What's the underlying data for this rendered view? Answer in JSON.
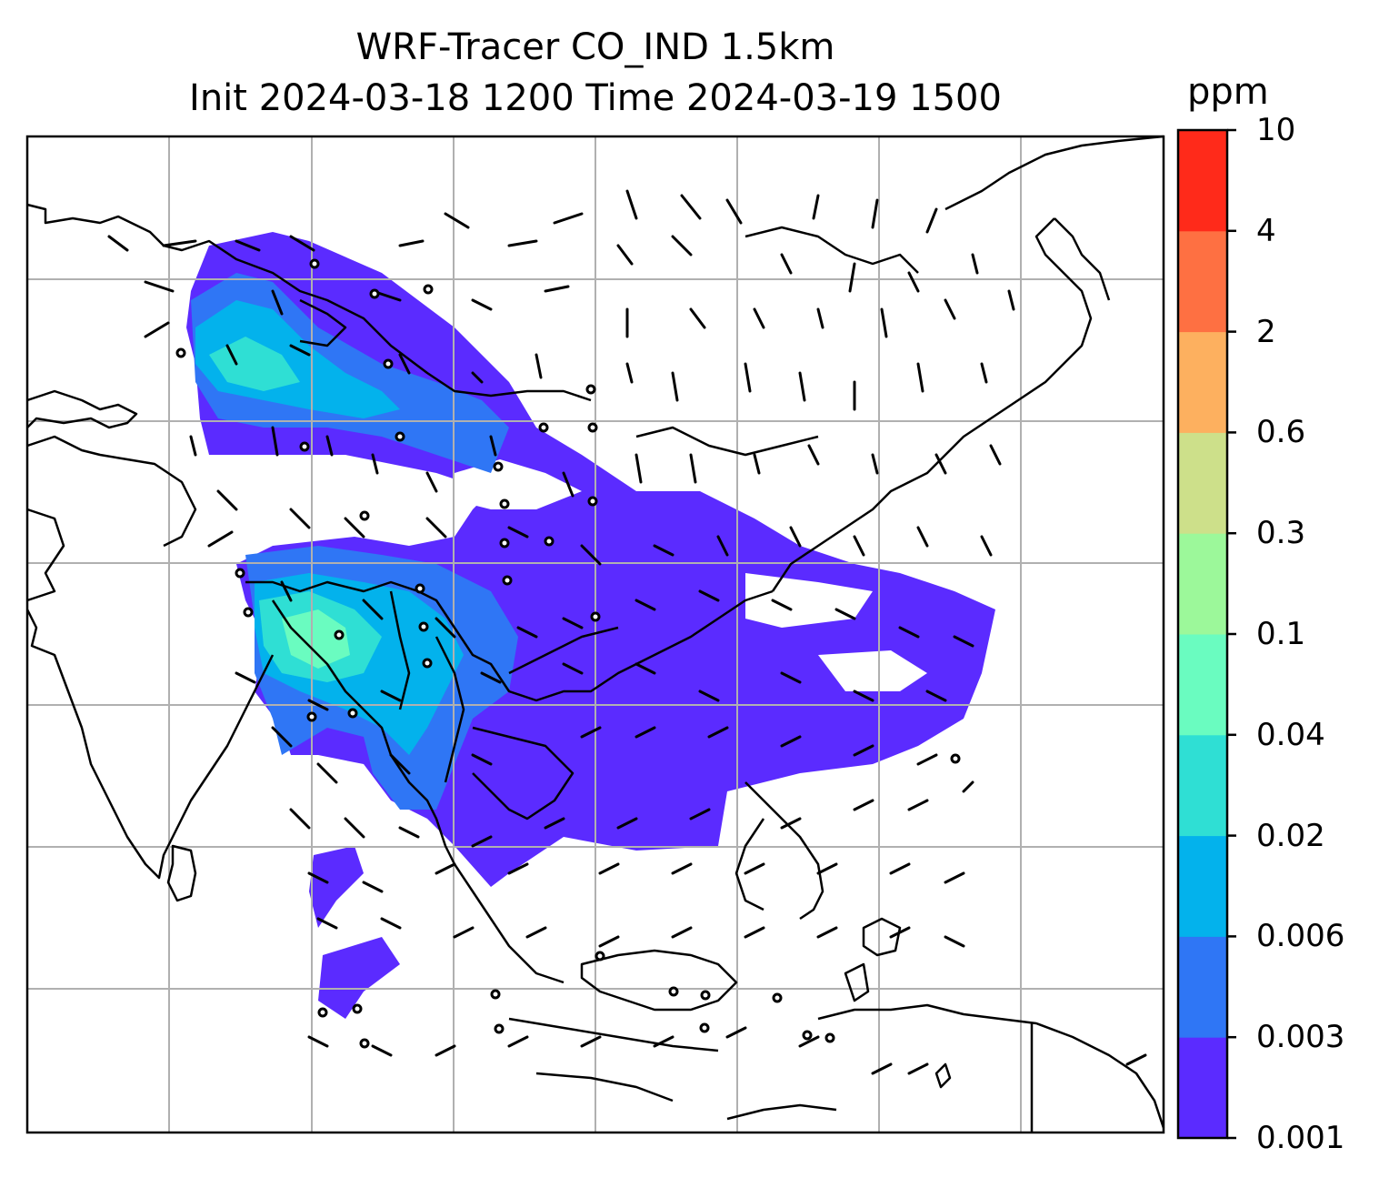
{
  "title_line1": "WRF-Tracer CO_IND 1.5km",
  "title_line2": "Init 2024-03-18 1200 Time 2024-03-19 1500",
  "colorbar": {
    "units": "ppm",
    "levels": [
      "0.001",
      "0.003",
      "0.006",
      "0.02",
      "0.04",
      "0.1",
      "0.3",
      "0.6",
      "2",
      "4",
      "10"
    ],
    "colors": [
      "#5b2bff",
      "#2f76f5",
      "#03b2ec",
      "#2fdfd4",
      "#6afcc0",
      "#9cf89a",
      "#cde08a",
      "#fdb05f",
      "#fe7042",
      "#ff2a1a"
    ]
  },
  "map": {
    "field": "CO_IND",
    "gridlines": true,
    "land_outline_color": "#000000",
    "gridline_color": "#b0b0b0"
  }
}
